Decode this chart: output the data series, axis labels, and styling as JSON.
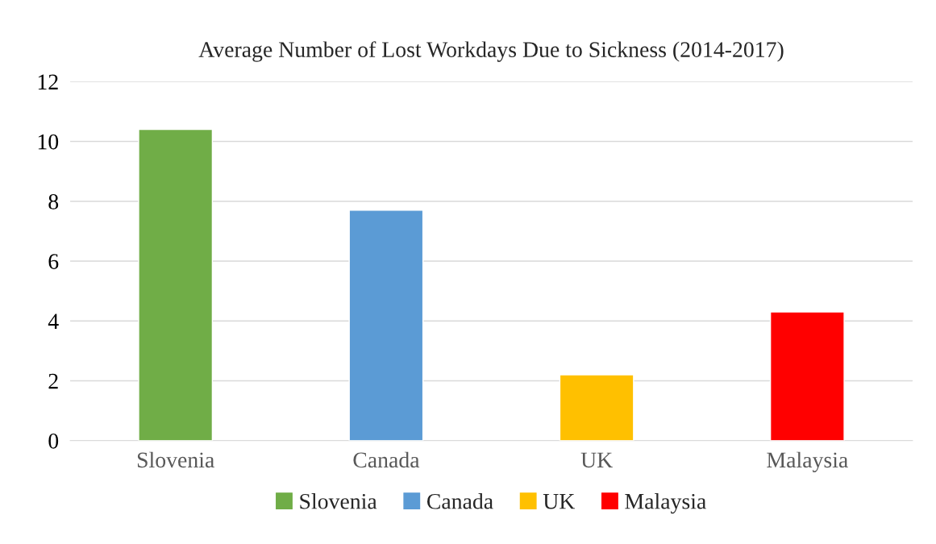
{
  "chart_data": {
    "type": "bar",
    "title": "Average Number of Lost Workdays Due to Sickness (2014-2017)",
    "categories": [
      "Slovenia",
      "Canada",
      "UK",
      "Malaysia"
    ],
    "series": [
      {
        "name": "Slovenia",
        "color": "#70ad47",
        "values": [
          10.4,
          null,
          null,
          null
        ]
      },
      {
        "name": "Canada",
        "color": "#5b9bd5",
        "values": [
          null,
          7.7,
          null,
          null
        ]
      },
      {
        "name": "UK",
        "color": "#ffc000",
        "values": [
          null,
          null,
          2.2,
          null
        ]
      },
      {
        "name": "Malaysia",
        "color": "#ff0000",
        "values": [
          null,
          null,
          null,
          4.3
        ]
      }
    ],
    "ylim": [
      0,
      12
    ],
    "yticks": [
      0,
      2,
      4,
      6,
      8,
      10,
      12
    ],
    "grid": "y",
    "legend": "bottom"
  }
}
